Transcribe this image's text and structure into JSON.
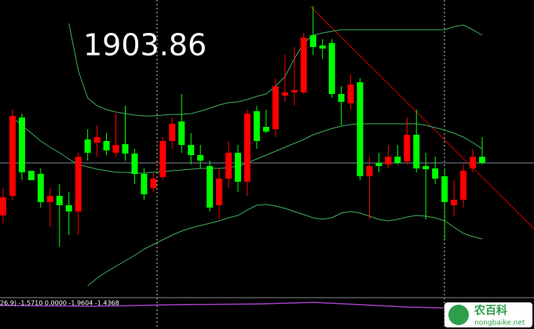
{
  "chart_data": {
    "type": "candlestick",
    "annotation": "1903.86",
    "indicator_label": "26,9) -1.5710 0.0000 -1.9604 -1.4368",
    "ylim": [
      0,
      380
    ],
    "up_color": "#ff0000",
    "down_color": "#00ff00",
    "band_color": "#3fae5a",
    "open": [
      105,
      130,
      230,
      162,
      158,
      122,
      130,
      118,
      110,
      202,
      198,
      200,
      185,
      196,
      184,
      158,
      140,
      154,
      200,
      225,
      195,
      182,
      168,
      118,
      152,
      185,
      148,
      238,
      218,
      215,
      258,
      262,
      262,
      335,
      322,
      325,
      260,
      248,
      275,
      155,
      172,
      170,
      180,
      174,
      208,
      168,
      165,
      155,
      118,
      125,
      165,
      180
    ],
    "high": [
      140,
      240,
      235,
      162,
      165,
      140,
      145,
      135,
      185,
      215,
      220,
      210,
      235,
      245,
      190,
      165,
      160,
      205,
      230,
      260,
      210,
      195,
      175,
      165,
      200,
      195,
      240,
      245,
      240,
      280,
      310,
      320,
      338,
      372,
      330,
      330,
      270,
      285,
      280,
      180,
      185,
      195,
      195,
      230,
      240,
      185,
      180,
      165,
      150,
      170,
      190,
      205
    ],
    "low": [
      95,
      125,
      150,
      150,
      115,
      90,
      65,
      80,
      80,
      175,
      180,
      182,
      180,
      175,
      145,
      125,
      135,
      150,
      190,
      185,
      170,
      165,
      110,
      100,
      140,
      135,
      130,
      190,
      210,
      205,
      250,
      245,
      260,
      310,
      305,
      255,
      220,
      240,
      150,
      100,
      160,
      165,
      170,
      170,
      160,
      100,
      145,
      75,
      105,
      115,
      160,
      170
    ],
    "close": [
      128,
      232,
      160,
      150,
      122,
      130,
      118,
      110,
      180,
      185,
      205,
      188,
      195,
      184,
      158,
      132,
      152,
      200,
      222,
      195,
      182,
      175,
      115,
      152,
      185,
      148,
      235,
      200,
      212,
      270,
      262,
      265,
      332,
      320,
      318,
      260,
      250,
      272,
      155,
      168,
      168,
      180,
      172,
      208,
      165,
      164,
      152,
      122,
      125,
      162,
      180,
      172
    ],
    "bands": {
      "upper": [
        null,
        null,
        null,
        null,
        null,
        null,
        null,
        350,
        290,
        255,
        245,
        240,
        237,
        235,
        233,
        232,
        232,
        233,
        234,
        234,
        235,
        238,
        242,
        246,
        249,
        250,
        253,
        257,
        260,
        270,
        282,
        305,
        325,
        335,
        338,
        340,
        342,
        342,
        342,
        342,
        342,
        342,
        342,
        342,
        342,
        342,
        342,
        342,
        346,
        348,
        342,
        335
      ],
      "middle": [
        null,
        230,
        220,
        210,
        200,
        192,
        185,
        177,
        170,
        167,
        164,
        162,
        160,
        160,
        159,
        159,
        160,
        161,
        162,
        163,
        164,
        165,
        165,
        165,
        166,
        168,
        172,
        177,
        182,
        187,
        192,
        197,
        202,
        208,
        212,
        216,
        219,
        221,
        222,
        222,
        222,
        222,
        222,
        222,
        222,
        220,
        217,
        214,
        210,
        205,
        198,
        190
      ],
      "lower": [
        null,
        null,
        null,
        null,
        null,
        null,
        null,
        null,
        null,
        15,
        25,
        33,
        40,
        47,
        54,
        62,
        68,
        74,
        80,
        85,
        89,
        92,
        95,
        98,
        102,
        105,
        112,
        118,
        119,
        117,
        114,
        110,
        106,
        102,
        100,
        102,
        108,
        110,
        108,
        104,
        100,
        98,
        100,
        103,
        105,
        104,
        102,
        98,
        90,
        82,
        78,
        75
      ]
    }
  },
  "watermark": {
    "name": "农百科",
    "url": "nongbaike.net"
  }
}
